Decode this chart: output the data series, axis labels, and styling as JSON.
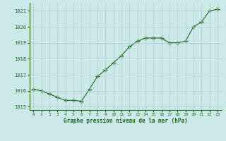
{
  "x": [
    0,
    1,
    2,
    3,
    4,
    5,
    6,
    7,
    8,
    9,
    10,
    11,
    12,
    13,
    14,
    15,
    16,
    17,
    18,
    19,
    20,
    21,
    22,
    23
  ],
  "y": [
    1016.1,
    1016.0,
    1015.8,
    1015.6,
    1015.4,
    1015.4,
    1015.35,
    1016.1,
    1016.9,
    1017.3,
    1017.75,
    1018.2,
    1018.75,
    1019.1,
    1019.3,
    1019.3,
    1019.3,
    1019.0,
    1019.0,
    1019.1,
    1020.0,
    1020.3,
    1021.0,
    1021.1
  ],
  "line_color": "#1a6b1a",
  "marker": "+",
  "marker_size": 4,
  "bg_color": "#cce8e8",
  "grid_color": "#b0cccc",
  "xlabel": "Graphe pression niveau de la mer (hPa)",
  "xlabel_color": "#1a6b1a",
  "tick_color": "#1a6b1a",
  "ylim": [
    1014.8,
    1021.5
  ],
  "yticks": [
    1015,
    1016,
    1017,
    1018,
    1019,
    1020,
    1021
  ],
  "xlim": [
    -0.5,
    23.5
  ],
  "xticks": [
    0,
    1,
    2,
    3,
    4,
    5,
    6,
    7,
    8,
    9,
    10,
    11,
    12,
    13,
    14,
    15,
    16,
    17,
    18,
    19,
    20,
    21,
    22,
    23
  ]
}
